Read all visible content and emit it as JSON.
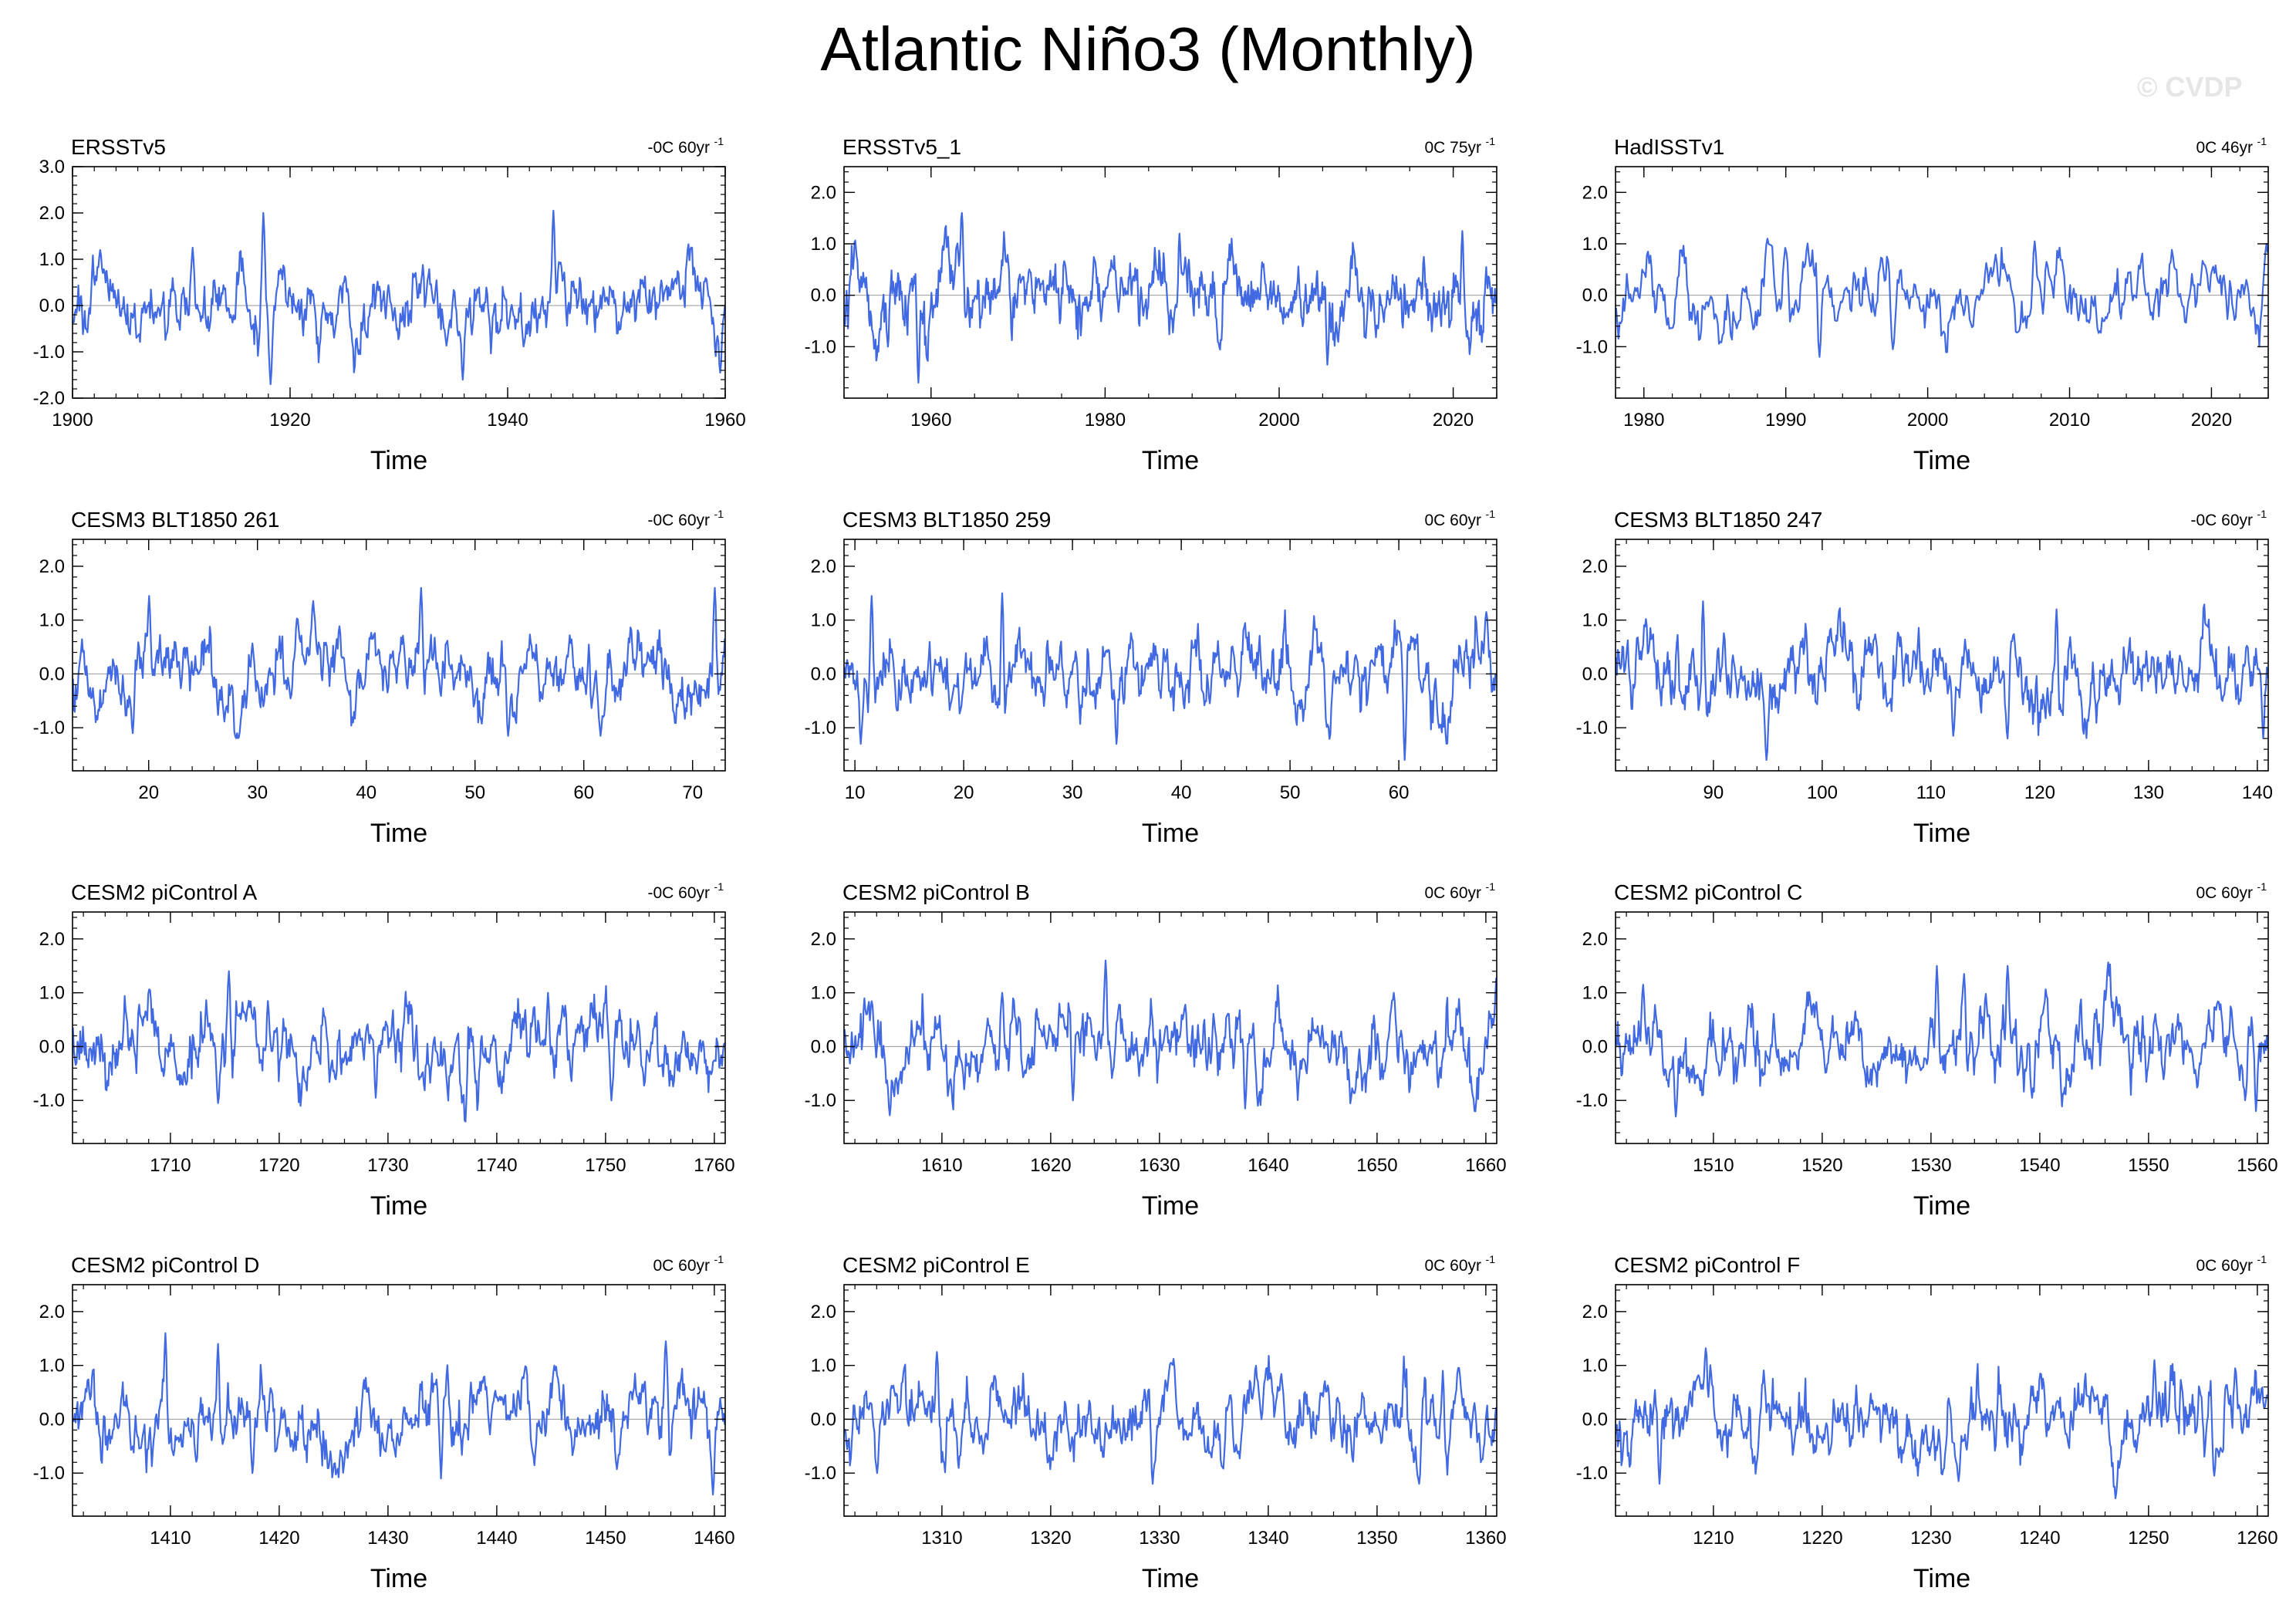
{
  "figure": {
    "title": "Atlantic Niño3 (Monthly)",
    "watermark": "© CVDP",
    "line_color": "#4169e1",
    "axis_color": "#000000"
  },
  "chart_data": [
    {
      "type": "line",
      "title": "ERSSTv5",
      "trend_value": "-0C 60yr",
      "trend_exp": "-1",
      "xlabel": "Time",
      "ylabel": "",
      "xlim": [
        1900,
        1960
      ],
      "ylim": [
        -2.0,
        3.0
      ],
      "xticks": [
        1900,
        1920,
        1940,
        1960
      ],
      "yticks": [
        -2.0,
        -1.0,
        0.0,
        1.0,
        2.0,
        3.0
      ],
      "grid": false,
      "seed": 101,
      "peaks": [
        [
          1917.5,
          2.0
        ],
        [
          1918.2,
          -1.7
        ],
        [
          1944.2,
          2.05
        ],
        [
          1935.8,
          -1.6
        ],
        [
          1959.5,
          -1.45
        ],
        [
          1902.5,
          1.2
        ],
        [
          1911,
          1.25
        ]
      ]
    },
    {
      "type": "line",
      "title": "ERSSTv5_1",
      "trend_value": "0C 75yr",
      "trend_exp": "-1",
      "xlabel": "Time",
      "ylabel": "",
      "xlim": [
        1950,
        2025
      ],
      "ylim": [
        -2.0,
        2.5
      ],
      "xticks": [
        1960,
        1980,
        2000,
        2020
      ],
      "yticks": [
        -1.0,
        0.0,
        1.0,
        2.0
      ],
      "grid": false,
      "seed": 102,
      "peaks": [
        [
          1963.5,
          1.6
        ],
        [
          1958.5,
          -1.7
        ],
        [
          1955,
          -1.0
        ],
        [
          1988.5,
          1.2
        ],
        [
          2005.5,
          -1.35
        ],
        [
          2021,
          1.25
        ]
      ]
    },
    {
      "type": "line",
      "title": "HadISSTv1",
      "trend_value": "0C 46yr",
      "trend_exp": "-1",
      "xlabel": "Time",
      "ylabel": "",
      "xlim": [
        1978,
        2024
      ],
      "ylim": [
        -2.0,
        2.5
      ],
      "xticks": [
        1980,
        1990,
        2000,
        2010,
        2020
      ],
      "yticks": [
        -1.0,
        0.0,
        1.0,
        2.0
      ],
      "grid": false,
      "seed": 103,
      "peaks": [
        [
          1988.7,
          1.1
        ],
        [
          1992.3,
          -1.2
        ],
        [
          1997.5,
          -1.05
        ],
        [
          2007.5,
          1.05
        ],
        [
          2023.8,
          1.0
        ]
      ]
    },
    {
      "type": "line",
      "title": "CESM3 BLT1850 261",
      "trend_value": "-0C 60yr",
      "trend_exp": "-1",
      "xlabel": "Time",
      "ylabel": "",
      "xlim": [
        13,
        73
      ],
      "ylim": [
        -1.8,
        2.5
      ],
      "xticks": [
        20,
        30,
        40,
        50,
        60,
        70
      ],
      "yticks": [
        -1.0,
        0.0,
        1.0,
        2.0
      ],
      "grid": false,
      "seed": 104,
      "peaks": [
        [
          20,
          1.45
        ],
        [
          45,
          1.6
        ],
        [
          72,
          1.6
        ],
        [
          18.5,
          -1.1
        ],
        [
          53,
          -1.15
        ],
        [
          61.5,
          -1.15
        ]
      ]
    },
    {
      "type": "line",
      "title": "CESM3 BLT1850 259",
      "trend_value": "0C 60yr",
      "trend_exp": "-1",
      "xlabel": "Time",
      "ylabel": "",
      "xlim": [
        9,
        69
      ],
      "ylim": [
        -1.8,
        2.5
      ],
      "xticks": [
        10,
        20,
        30,
        40,
        50,
        60
      ],
      "yticks": [
        -1.0,
        0.0,
        1.0,
        2.0
      ],
      "grid": false,
      "seed": 105,
      "peaks": [
        [
          11.5,
          1.45
        ],
        [
          23.5,
          1.5
        ],
        [
          10.5,
          -1.3
        ],
        [
          60.5,
          -1.6
        ],
        [
          34,
          -1.3
        ],
        [
          68,
          1.15
        ]
      ]
    },
    {
      "type": "line",
      "title": "CESM3 BLT1850 247",
      "trend_value": "-0C 60yr",
      "trend_exp": "-1",
      "xlabel": "Time",
      "ylabel": "",
      "xlim": [
        81,
        141
      ],
      "ylim": [
        -1.8,
        2.5
      ],
      "xticks": [
        90,
        100,
        110,
        120,
        130,
        140
      ],
      "yticks": [
        -1.0,
        0.0,
        1.0,
        2.0
      ],
      "grid": false,
      "seed": 106,
      "peaks": [
        [
          89,
          1.35
        ],
        [
          121.5,
          1.2
        ],
        [
          94.8,
          -1.6
        ],
        [
          112,
          -1.15
        ],
        [
          140.5,
          -1.2
        ],
        [
          117,
          -1.2
        ]
      ]
    },
    {
      "type": "line",
      "title": "CESM2 piControl A",
      "trend_value": "-0C 60yr",
      "trend_exp": "-1",
      "xlabel": "Time",
      "ylabel": "",
      "xlim": [
        1701,
        1761
      ],
      "ylim": [
        -1.8,
        2.5
      ],
      "xticks": [
        1710,
        1720,
        1730,
        1740,
        1750,
        1760
      ],
      "yticks": [
        -1.0,
        0.0,
        1.0,
        2.0
      ],
      "grid": false,
      "seed": 107,
      "peaks": [
        [
          1715.3,
          1.4
        ],
        [
          1714.3,
          -1.05
        ],
        [
          1728.8,
          -0.95
        ],
        [
          1744.7,
          1.0
        ],
        [
          1750.5,
          -1.0
        ]
      ]
    },
    {
      "type": "line",
      "title": "CESM2 piControl B",
      "trend_value": "0C 60yr",
      "trend_exp": "-1",
      "xlabel": "Time",
      "ylabel": "",
      "xlim": [
        1601,
        1661
      ],
      "ylim": [
        -1.8,
        2.5
      ],
      "xticks": [
        1610,
        1620,
        1630,
        1640,
        1650,
        1660
      ],
      "yticks": [
        -1.0,
        0.0,
        1.0,
        2.0
      ],
      "grid": false,
      "seed": 108,
      "peaks": [
        [
          1625,
          1.6
        ],
        [
          1615.5,
          1.0
        ],
        [
          1637.8,
          -1.15
        ],
        [
          1622,
          -1.0
        ],
        [
          1651.5,
          1.0
        ],
        [
          1639,
          -1.1
        ]
      ]
    },
    {
      "type": "line",
      "title": "CESM2 piControl C",
      "trend_value": "0C 60yr",
      "trend_exp": "-1",
      "xlabel": "Time",
      "ylabel": "",
      "xlim": [
        1501,
        1561
      ],
      "ylim": [
        -1.8,
        2.5
      ],
      "xticks": [
        1510,
        1520,
        1530,
        1540,
        1550,
        1560
      ],
      "yticks": [
        -1.0,
        0.0,
        1.0,
        2.0
      ],
      "grid": false,
      "seed": 109,
      "peaks": [
        [
          1503.5,
          1.15
        ],
        [
          1530.5,
          1.5
        ],
        [
          1537,
          1.5
        ],
        [
          1506.5,
          -1.3
        ],
        [
          1559.8,
          -1.2
        ],
        [
          1533,
          1.35
        ]
      ]
    },
    {
      "type": "line",
      "title": "CESM2 piControl D",
      "trend_value": "0C 60yr",
      "trend_exp": "-1",
      "xlabel": "Time",
      "ylabel": "",
      "xlim": [
        1401,
        1461
      ],
      "ylim": [
        -1.8,
        2.5
      ],
      "xticks": [
        1410,
        1420,
        1430,
        1440,
        1450,
        1460
      ],
      "yticks": [
        -1.0,
        0.0,
        1.0,
        2.0
      ],
      "grid": false,
      "seed": 110,
      "peaks": [
        [
          1409.5,
          1.6
        ],
        [
          1414.3,
          1.4
        ],
        [
          1455.5,
          1.45
        ],
        [
          1434.8,
          -1.1
        ],
        [
          1459.8,
          -1.4
        ],
        [
          1417.5,
          -1.0
        ]
      ]
    },
    {
      "type": "line",
      "title": "CESM2 piControl E",
      "trend_value": "0C 60yr",
      "trend_exp": "-1",
      "xlabel": "Time",
      "ylabel": "",
      "xlim": [
        1301,
        1361
      ],
      "ylim": [
        -1.8,
        2.5
      ],
      "xticks": [
        1310,
        1320,
        1330,
        1340,
        1350,
        1360
      ],
      "yticks": [
        -1.0,
        0.0,
        1.0,
        2.0
      ],
      "grid": false,
      "seed": 111,
      "peaks": [
        [
          1309.5,
          1.25
        ],
        [
          1329.3,
          -1.2
        ],
        [
          1353.8,
          -1.2
        ],
        [
          1356,
          0.9
        ],
        [
          1304,
          -1.0
        ]
      ]
    },
    {
      "type": "line",
      "title": "CESM2 piControl F",
      "trend_value": "0C 60yr",
      "trend_exp": "-1",
      "xlabel": "Time",
      "ylabel": "",
      "xlim": [
        1201,
        1261
      ],
      "ylim": [
        -1.8,
        2.5
      ],
      "xticks": [
        1210,
        1220,
        1230,
        1240,
        1250,
        1260
      ],
      "yticks": [
        -1.0,
        0.0,
        1.0,
        2.0
      ],
      "grid": false,
      "seed": 112,
      "peaks": [
        [
          1250.5,
          1.1
        ],
        [
          1205,
          -1.2
        ],
        [
          1232.5,
          -1.15
        ],
        [
          1240,
          0.85
        ],
        [
          1256,
          -1.05
        ]
      ]
    }
  ]
}
